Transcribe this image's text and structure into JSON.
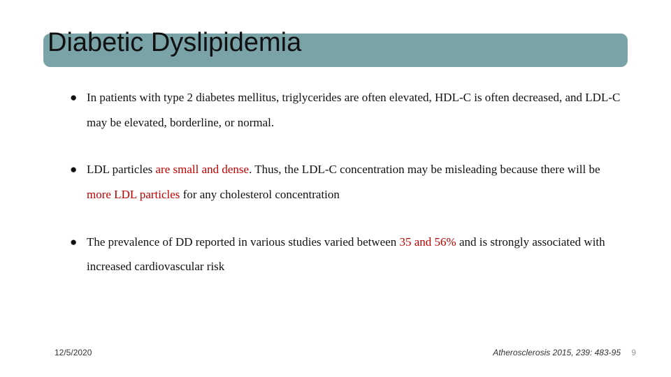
{
  "title": "Diabetic Dyslipidemia",
  "title_bar_color": "#7aa3a8",
  "title_fontsize": 38,
  "body_fontsize": 17,
  "highlight_color": "#c00000",
  "bullets": [
    {
      "runs": [
        {
          "t": "In patients with type 2 diabetes mellitus, triglycerides are often elevated, HDL-C is often decreased, and LDL-C may be elevated, borderline, or normal.",
          "hl": false
        }
      ]
    },
    {
      "runs": [
        {
          "t": "LDL particles ",
          "hl": false
        },
        {
          "t": "are small and dense",
          "hl": true
        },
        {
          "t": ". Thus, the LDL-C concentration may be misleading because there will be ",
          "hl": false
        },
        {
          "t": "more LDL particles",
          "hl": true
        },
        {
          "t": " for any cholesterol concentration",
          "hl": false
        }
      ]
    },
    {
      "runs": [
        {
          "t": "The prevalence of DD reported in various studies varied between ",
          "hl": false
        },
        {
          "t": "35 and 56%",
          "hl": true
        },
        {
          "t": " and is strongly associated with increased cardiovascular risk",
          "hl": false
        }
      ]
    }
  ],
  "footer": {
    "date": "12/5/2020",
    "reference": "Atherosclerosis 2015, 239: 483-95",
    "page": "9"
  }
}
